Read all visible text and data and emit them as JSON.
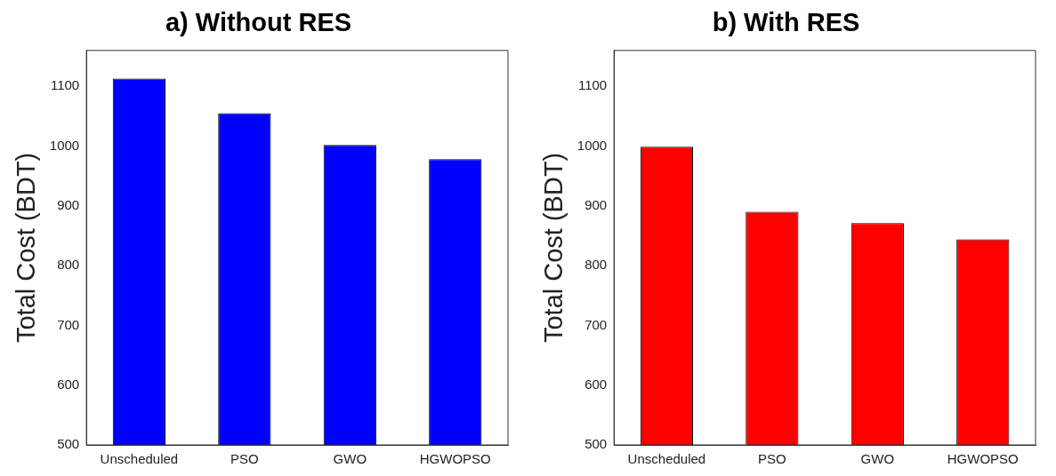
{
  "chart_data": [
    {
      "type": "bar",
      "title": "a) Without RES",
      "ylabel": "Total Cost (BDT)",
      "categories": [
        "Unscheduled",
        "PSO",
        "GWO",
        "HGWOPSO"
      ],
      "values": [
        1113,
        1055,
        1002,
        978
      ],
      "color": "#0000ff",
      "ylim": [
        500,
        1160
      ],
      "yticks": [
        500,
        600,
        700,
        800,
        900,
        1000,
        1100
      ]
    },
    {
      "type": "bar",
      "title": "b) With RES",
      "ylabel": "Total Cost (BDT)",
      "categories": [
        "Unscheduled",
        "PSO",
        "GWO",
        "HGWOPSO"
      ],
      "values": [
        999,
        890,
        871,
        844
      ],
      "color": "#ff0000",
      "ylim": [
        500,
        1160
      ],
      "yticks": [
        500,
        600,
        700,
        800,
        900,
        1000,
        1100
      ]
    }
  ]
}
